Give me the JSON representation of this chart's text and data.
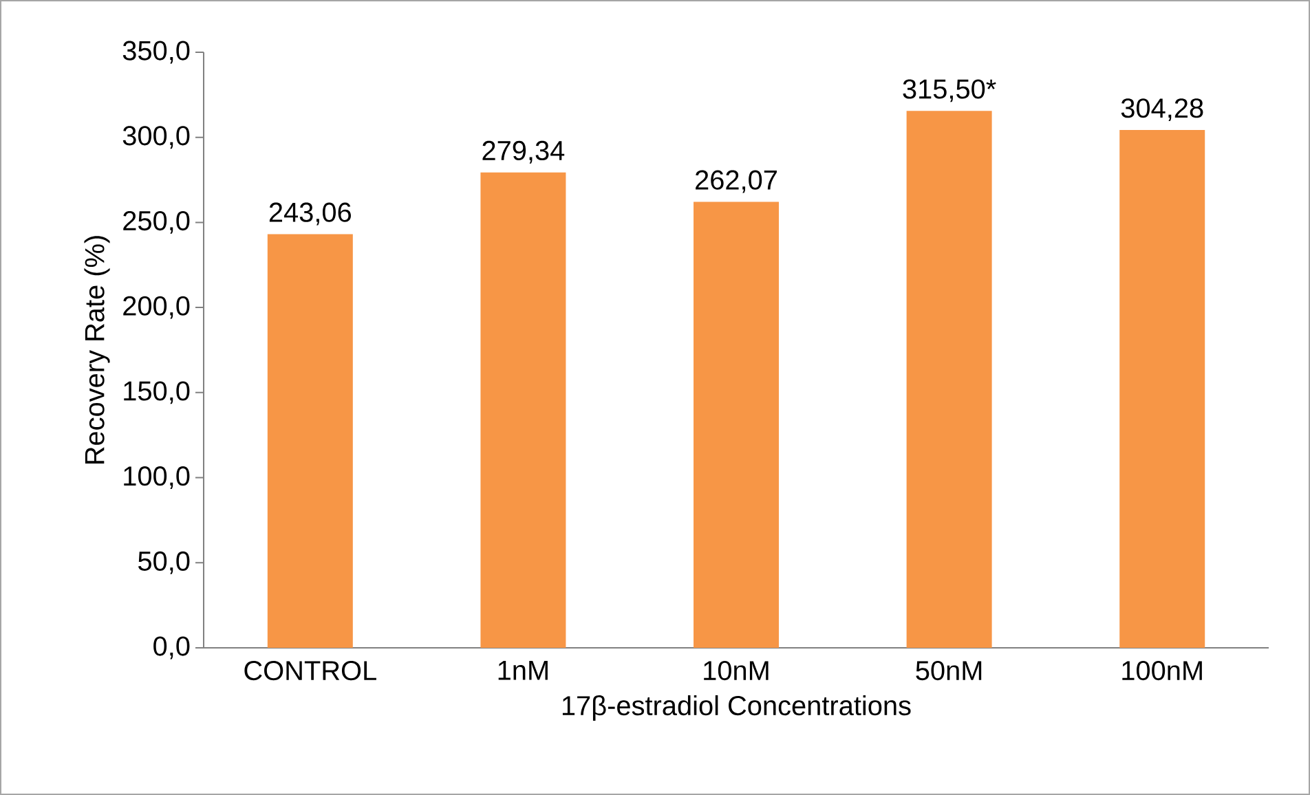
{
  "chart_data": {
    "type": "bar",
    "xlabel": "17β-estradiol Concentrations",
    "ylabel": "Recovery Rate (%)",
    "categories": [
      "CONTROL",
      "1nM",
      "10nM",
      "50nM",
      "100nM"
    ],
    "values": [
      243.06,
      279.34,
      262.07,
      315.5,
      304.28
    ],
    "value_labels": [
      "243,06",
      "279,34",
      "262,07",
      "315,50*",
      "304,28"
    ],
    "color": "#f79646",
    "ylim": [
      0,
      350
    ],
    "yticks": [
      {
        "value": 0,
        "label": "0,0"
      },
      {
        "value": 50,
        "label": "50,0"
      },
      {
        "value": 100,
        "label": "100,0"
      },
      {
        "value": 150,
        "label": "150,0"
      },
      {
        "value": 200,
        "label": "200,0"
      },
      {
        "value": 250,
        "label": "250,0"
      },
      {
        "value": 300,
        "label": "300,0"
      },
      {
        "value": 350,
        "label": "350,0"
      }
    ],
    "grid": false
  }
}
